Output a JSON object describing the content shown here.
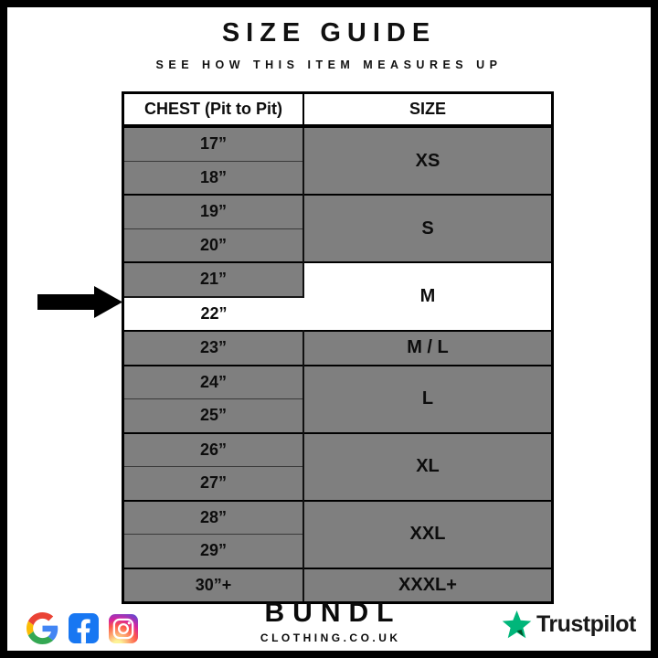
{
  "page": {
    "title": "SIZE GUIDE",
    "subtitle": "SEE HOW THIS ITEM MEASURES UP"
  },
  "size_table": {
    "columns": {
      "chest": "CHEST (Pit to Pit)",
      "size": "SIZE"
    },
    "groups": [
      {
        "size": "XS",
        "rows": [
          "17”",
          "18”"
        ]
      },
      {
        "size": "S",
        "rows": [
          "19”",
          "20”"
        ]
      },
      {
        "size": "M",
        "rows": [
          "21”",
          "22”"
        ]
      },
      {
        "size": "M / L",
        "rows": [
          "23”"
        ]
      },
      {
        "size": "L",
        "rows": [
          "24”",
          "25”"
        ]
      },
      {
        "size": "XL",
        "rows": [
          "26”",
          "27”"
        ]
      },
      {
        "size": "XXL",
        "rows": [
          "28”",
          "29”"
        ]
      },
      {
        "size": "XXXL+",
        "rows": [
          "30”+"
        ]
      }
    ],
    "highlight": {
      "chest": "22”",
      "size": "M"
    }
  },
  "pointer": {
    "points_to": "22”"
  },
  "footer": {
    "brand": {
      "name": "BUNDL",
      "domain": "CLOTHING.CO.UK"
    },
    "social_icons": [
      "google-icon",
      "facebook-icon",
      "instagram-icon"
    ],
    "trustpilot_label": "Trustpilot"
  },
  "colors": {
    "row_gray": "#7f7f7f",
    "highlight_white": "#ffffff",
    "border_black": "#000000",
    "trustpilot_green": "#00b67a",
    "trustpilot_dark_green": "#005128",
    "facebook_blue": "#1877f2"
  }
}
